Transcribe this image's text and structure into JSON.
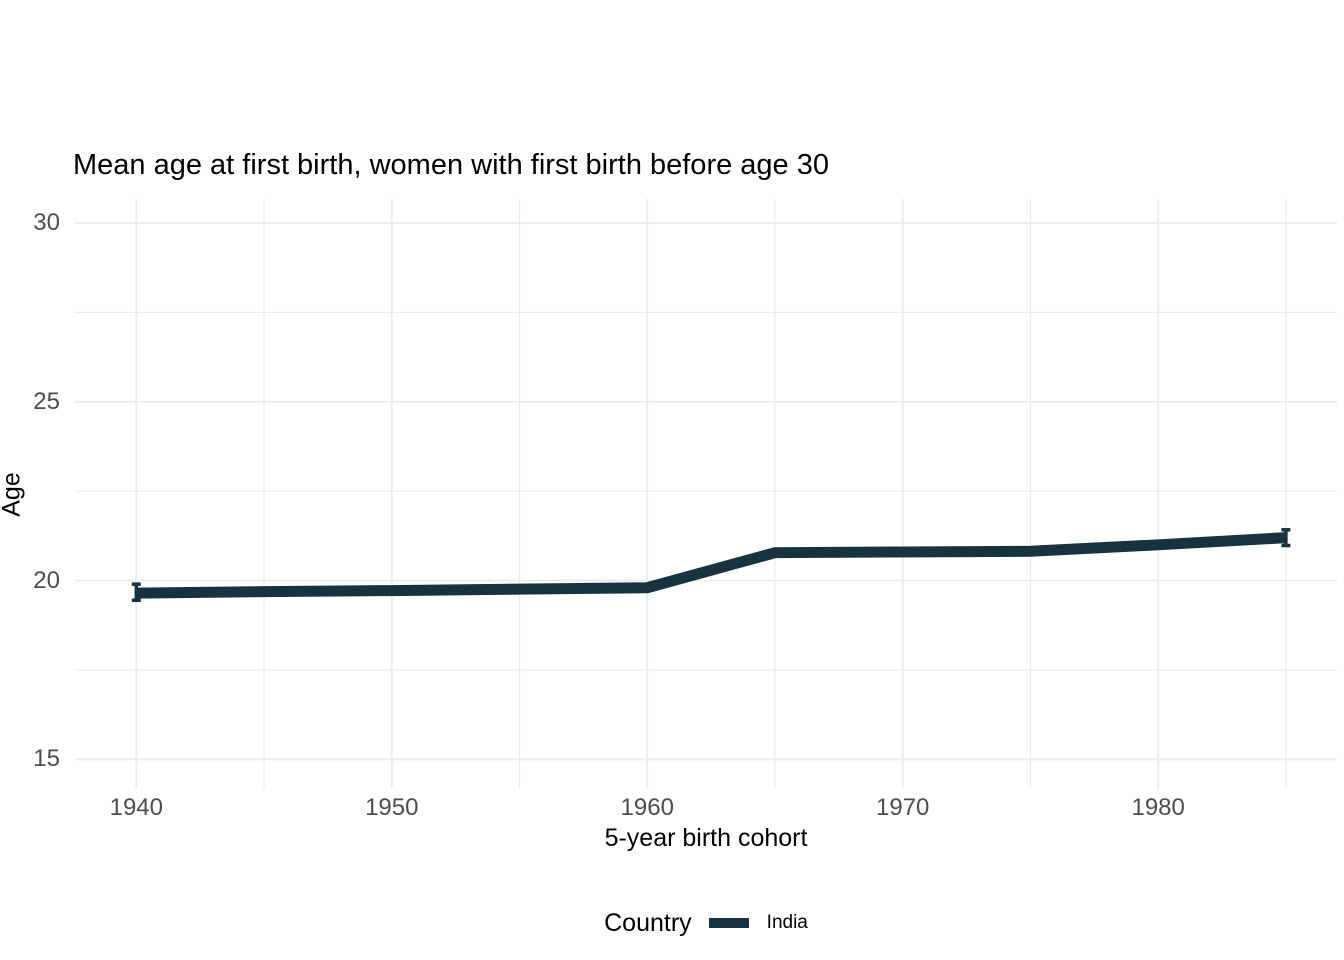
{
  "title": "Mean age at first birth, women with first birth before age 30",
  "colors": {
    "background": "#ffffff",
    "line": "#17333f",
    "gridline": "#ebebeb",
    "tick_text": "#4d4d4d",
    "title_text": "#000000"
  },
  "chart_data": {
    "type": "line",
    "title": "Mean age at first birth, women with first birth before age 30",
    "xlabel": "5-year birth cohort",
    "ylabel": "Age",
    "xlim": [
      1937.6,
      1987
    ],
    "ylim": [
      14.2,
      30.67
    ],
    "x_ticks": [
      1940,
      1950,
      1960,
      1970,
      1980
    ],
    "x_minor_ticks": [
      1945,
      1955,
      1965,
      1975,
      1985
    ],
    "y_ticks": [
      15,
      20,
      25,
      30
    ],
    "y_minor_ticks": [
      17.5,
      22.5,
      27.5
    ],
    "grid": true,
    "legend": {
      "title": "Country",
      "position": "bottom",
      "entries": [
        {
          "label": "India",
          "color": "#17333f"
        }
      ]
    },
    "series": [
      {
        "name": "India",
        "color": "#17333f",
        "x": [
          1940,
          1945,
          1950,
          1955,
          1960,
          1965,
          1970,
          1975,
          1980,
          1985
        ],
        "y": [
          19.65,
          19.69,
          19.72,
          19.76,
          19.8,
          20.78,
          20.8,
          20.82,
          21.0,
          21.2
        ],
        "error_bars": [
          {
            "x": 1940,
            "low": 19.45,
            "high": 19.9
          },
          {
            "x": 1985,
            "low": 20.98,
            "high": 21.42
          }
        ]
      }
    ]
  }
}
